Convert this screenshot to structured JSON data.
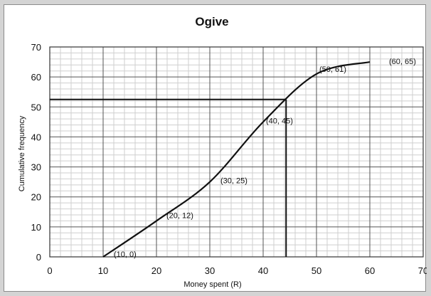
{
  "chart_data": {
    "type": "line",
    "title": "Ogive",
    "xlabel": "Money spent (R)",
    "ylabel": "Cumulative frequency",
    "xlim": [
      0,
      70
    ],
    "ylim": [
      0,
      70
    ],
    "x_ticks": [
      "0",
      "10",
      "20",
      "30",
      "40",
      "50",
      "60",
      "70"
    ],
    "y_ticks": [
      "0",
      "10",
      "20",
      "30",
      "40",
      "50",
      "60",
      "70"
    ],
    "grid": true,
    "series": [
      {
        "x": [
          10,
          20,
          30,
          40,
          50,
          60
        ],
        "y": [
          0,
          12,
          25,
          45,
          61,
          65
        ],
        "labels": [
          "(10, 0)",
          "(20, 12)",
          "(30, 25)",
          "(40, 45)",
          "(50, 61)",
          "(60, 65)"
        ]
      }
    ],
    "reading_lines": {
      "y": 52.5,
      "x": 44.3
    },
    "colors": {
      "line": "#111111",
      "major_grid": "#555555",
      "minor_grid": "#cfcfcf"
    }
  }
}
